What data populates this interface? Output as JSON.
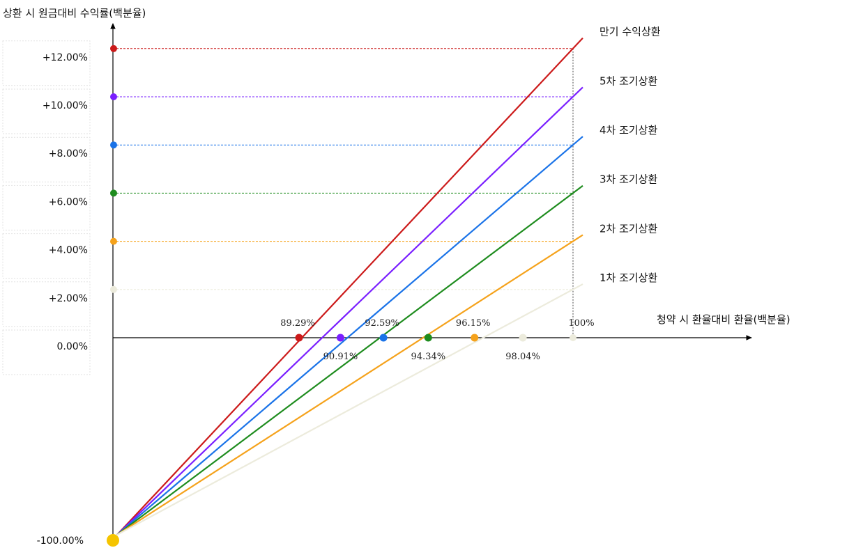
{
  "chart_data": {
    "type": "line",
    "ylabel": "상환 시 원금대비 수익률(백분율)",
    "xlabel": "청약 시 환율대비 환율(백분율)",
    "y_ticks": [
      "+12.00%",
      "+10.00%",
      "+8.00%",
      "+6.00%",
      "+4.00%",
      "+2.00%",
      "0.00%",
      "-100.00%"
    ],
    "origin": {
      "x": 0,
      "y": -100
    },
    "series": [
      {
        "name": "만기 수익상환",
        "color": "#cc1a1a",
        "y_at_100": 12,
        "x_intercept": 89.29,
        "x_label": "89.29%",
        "label_pos": "above"
      },
      {
        "name": "5차 조기상환",
        "color": "#7a1fff",
        "y_at_100": 10,
        "x_intercept": 90.91,
        "x_label": "90.91%",
        "label_pos": "below"
      },
      {
        "name": "4차 조기상환",
        "color": "#1a73e8",
        "y_at_100": 8,
        "x_intercept": 92.59,
        "x_label": "92.59%",
        "label_pos": "above"
      },
      {
        "name": "3차 조기상환",
        "color": "#1e8c1e",
        "y_at_100": 6,
        "x_intercept": 94.34,
        "x_label": "94.34%",
        "label_pos": "below"
      },
      {
        "name": "2차 조기상환",
        "color": "#f5a21b",
        "y_at_100": 4,
        "x_intercept": 96.15,
        "x_label": "96.15%",
        "label_pos": "above"
      },
      {
        "name": "1차 조기상환",
        "color": "#ecebdc",
        "y_at_100": 2,
        "x_intercept": 98.04,
        "x_label": "98.04%",
        "label_pos": "below"
      }
    ],
    "x_reference": {
      "value": 100,
      "label": "100%"
    },
    "origin_marker_color": "#f5c400",
    "grid": false
  }
}
